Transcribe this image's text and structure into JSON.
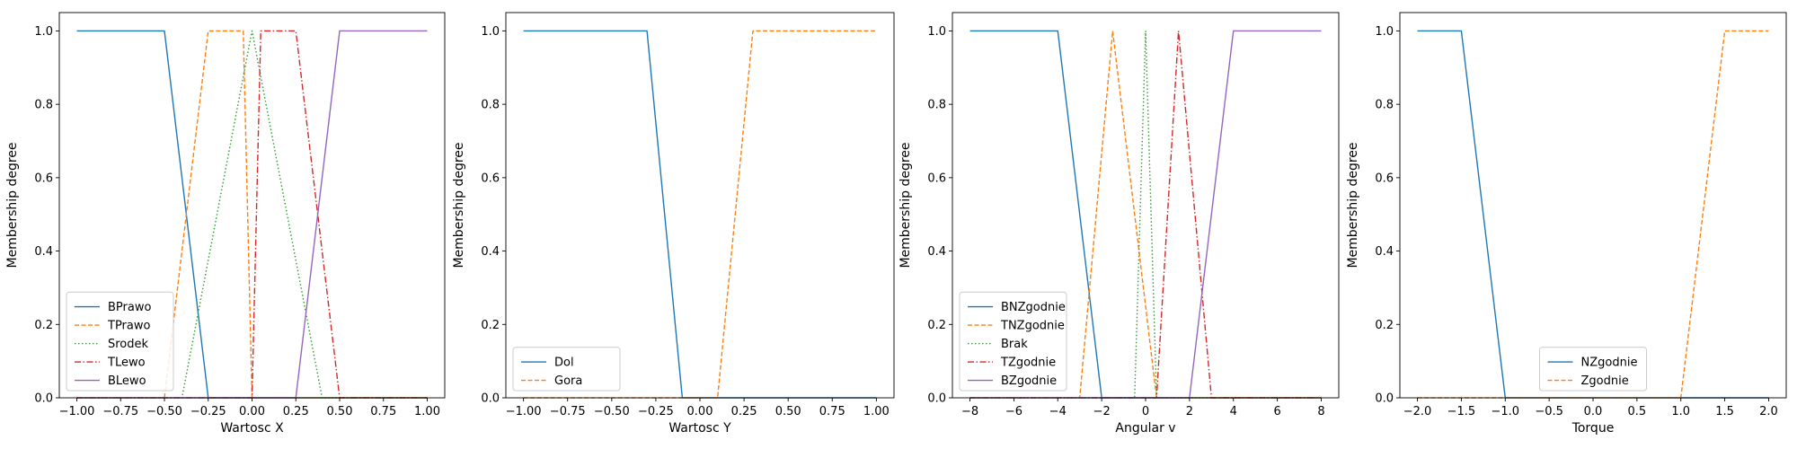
{
  "chart_data": [
    {
      "type": "line",
      "xlabel": "Wartosc X",
      "ylabel": "Membership degree",
      "xlim": [
        -1.1,
        1.1
      ],
      "ylim": [
        0,
        1.05
      ],
      "xticks": [
        -1.0,
        -0.75,
        -0.5,
        -0.25,
        0.0,
        0.25,
        0.5,
        0.75,
        1.0
      ],
      "xtick_labels": [
        "−1.00",
        "−0.75",
        "−0.50",
        "−0.25",
        "0.00",
        "0.25",
        "0.50",
        "0.75",
        "1.00"
      ],
      "yticks": [
        0.0,
        0.2,
        0.4,
        0.6,
        0.8,
        1.0
      ],
      "ytick_labels": [
        "0.0",
        "0.2",
        "0.4",
        "0.6",
        "0.8",
        "1.0"
      ],
      "legend_loc": "lower-left",
      "series": [
        {
          "name": "BPrawo",
          "color": "#1f77b4",
          "style": "solid",
          "x": [
            -1.0,
            -0.5,
            -0.25,
            1.0
          ],
          "y": [
            1,
            1,
            0,
            0
          ]
        },
        {
          "name": "TPrawo",
          "color": "#ff7f0e",
          "style": "dashed",
          "x": [
            -1.0,
            -0.5,
            -0.25,
            -0.05,
            0.0,
            1.0
          ],
          "y": [
            0,
            0,
            1,
            1,
            0,
            0
          ]
        },
        {
          "name": "Srodek",
          "color": "#2ca02c",
          "style": "dotted",
          "x": [
            -1.0,
            -0.4,
            0.0,
            0.4,
            1.0
          ],
          "y": [
            0,
            0,
            1,
            0,
            0
          ]
        },
        {
          "name": "TLewo",
          "color": "#d62728",
          "style": "dashdot",
          "x": [
            -1.0,
            0.0,
            0.05,
            0.25,
            0.5,
            1.0
          ],
          "y": [
            0,
            0,
            1,
            1,
            0,
            0
          ]
        },
        {
          "name": "BLewo",
          "color": "#9467bd",
          "style": "solid",
          "x": [
            -1.0,
            0.25,
            0.5,
            1.0
          ],
          "y": [
            0,
            0,
            1,
            1
          ]
        }
      ]
    },
    {
      "type": "line",
      "xlabel": "Wartosc Y",
      "ylabel": "Membership degree",
      "xlim": [
        -1.1,
        1.1
      ],
      "ylim": [
        0,
        1.05
      ],
      "xticks": [
        -1.0,
        -0.75,
        -0.5,
        -0.25,
        0.0,
        0.25,
        0.5,
        0.75,
        1.0
      ],
      "xtick_labels": [
        "−1.00",
        "−0.75",
        "−0.50",
        "−0.25",
        "0.00",
        "0.25",
        "0.50",
        "0.75",
        "1.00"
      ],
      "yticks": [
        0.0,
        0.2,
        0.4,
        0.6,
        0.8,
        1.0
      ],
      "ytick_labels": [
        "0.0",
        "0.2",
        "0.4",
        "0.6",
        "0.8",
        "1.0"
      ],
      "legend_loc": "lower-left",
      "series": [
        {
          "name": "Dol",
          "color": "#1f77b4",
          "style": "solid",
          "x": [
            -1.0,
            -0.3,
            -0.1,
            1.0
          ],
          "y": [
            1,
            1,
            0,
            0
          ]
        },
        {
          "name": "Gora",
          "color": "#ff7f0e",
          "style": "dashed",
          "x": [
            -1.0,
            0.1,
            0.3,
            1.0
          ],
          "y": [
            0,
            0,
            1,
            1
          ]
        }
      ]
    },
    {
      "type": "line",
      "xlabel": "Angular v",
      "ylabel": "Membership degree",
      "xlim": [
        -8.8,
        8.8
      ],
      "ylim": [
        0,
        1.05
      ],
      "xticks": [
        -8,
        -6,
        -4,
        -2,
        0,
        2,
        4,
        6,
        8
      ],
      "xtick_labels": [
        "−8",
        "−6",
        "−4",
        "−2",
        "0",
        "2",
        "4",
        "6",
        "8"
      ],
      "yticks": [
        0.0,
        0.2,
        0.4,
        0.6,
        0.8,
        1.0
      ],
      "ytick_labels": [
        "0.0",
        "0.2",
        "0.4",
        "0.6",
        "0.8",
        "1.0"
      ],
      "legend_loc": "lower-left",
      "series": [
        {
          "name": "BNZgodnie",
          "color": "#1f77b4",
          "style": "solid",
          "x": [
            -8,
            -4,
            -2,
            8
          ],
          "y": [
            1,
            1,
            0,
            0
          ]
        },
        {
          "name": "TNZgodnie",
          "color": "#ff7f0e",
          "style": "dashed",
          "x": [
            -8,
            -3,
            -1.5,
            0.5,
            8
          ],
          "y": [
            0,
            0,
            1,
            0,
            0
          ]
        },
        {
          "name": "Brak",
          "color": "#2ca02c",
          "style": "dotted",
          "x": [
            -8,
            -0.5,
            0,
            0.5,
            8
          ],
          "y": [
            0,
            0,
            1,
            0,
            0
          ]
        },
        {
          "name": "TZgodnie",
          "color": "#d62728",
          "style": "dashdot",
          "x": [
            -8,
            0.5,
            1.5,
            3,
            8
          ],
          "y": [
            0,
            0,
            1,
            0,
            0
          ]
        },
        {
          "name": "BZgodnie",
          "color": "#9467bd",
          "style": "solid",
          "x": [
            -8,
            2,
            4,
            8
          ],
          "y": [
            0,
            0,
            1,
            1
          ]
        }
      ]
    },
    {
      "type": "line",
      "xlabel": "Torque",
      "ylabel": "Membership degree",
      "xlim": [
        -2.2,
        2.2
      ],
      "ylim": [
        0,
        1.05
      ],
      "xticks": [
        -2.0,
        -1.5,
        -1.0,
        -0.5,
        0.0,
        0.5,
        1.0,
        1.5,
        2.0
      ],
      "xtick_labels": [
        "−2.0",
        "−1.5",
        "−1.0",
        "−0.5",
        "0.0",
        "0.5",
        "1.0",
        "1.5",
        "2.0"
      ],
      "yticks": [
        0.0,
        0.2,
        0.4,
        0.6,
        0.8,
        1.0
      ],
      "ytick_labels": [
        "0.0",
        "0.2",
        "0.4",
        "0.6",
        "0.8",
        "1.0"
      ],
      "legend_loc": "lower-center",
      "series": [
        {
          "name": "NZgodnie",
          "color": "#1f77b4",
          "style": "solid",
          "x": [
            -2.0,
            -1.5,
            -1.0,
            2.0
          ],
          "y": [
            1,
            1,
            0,
            0
          ]
        },
        {
          "name": "Zgodnie",
          "color": "#ff7f0e",
          "style": "dashed",
          "x": [
            -2.0,
            1.0,
            1.5,
            2.0
          ],
          "y": [
            0,
            0,
            1,
            1
          ]
        }
      ]
    }
  ]
}
